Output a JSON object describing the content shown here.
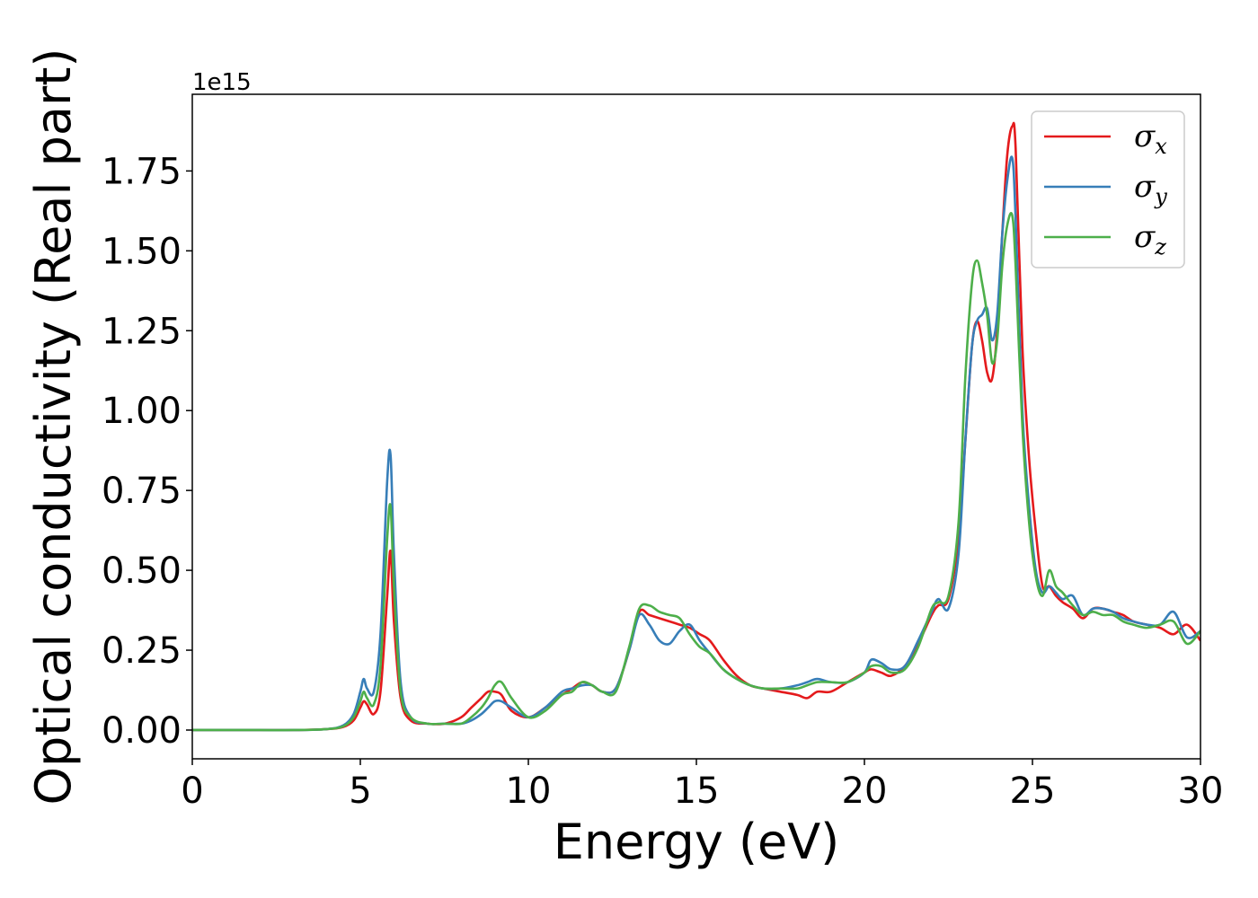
{
  "chart_data": {
    "type": "line",
    "xlabel": "Energy (eV)",
    "ylabel": "Optical conductivity (Real part)",
    "y_offset_label": "1e15",
    "xlim": [
      0,
      30
    ],
    "ylim": [
      -0.09,
      1.99
    ],
    "x_ticks": [
      0,
      5,
      10,
      15,
      20,
      25,
      30
    ],
    "x_tick_labels": [
      "0",
      "5",
      "10",
      "15",
      "20",
      "25",
      "30"
    ],
    "y_ticks": [
      0.0,
      0.25,
      0.5,
      0.75,
      1.0,
      1.25,
      1.5,
      1.75
    ],
    "y_tick_labels": [
      "0.00",
      "0.25",
      "0.50",
      "0.75",
      "1.00",
      "1.25",
      "1.50",
      "1.75"
    ],
    "grid": false,
    "legend_position": "top-right",
    "x": [
      0,
      1,
      2,
      3,
      4,
      4.5,
      4.8,
      5.0,
      5.1,
      5.2,
      5.4,
      5.6,
      5.8,
      5.9,
      6.0,
      6.2,
      6.5,
      7.0,
      7.5,
      8.0,
      8.3,
      8.6,
      8.8,
      9.0,
      9.2,
      9.5,
      10.0,
      10.5,
      11.0,
      11.3,
      11.6,
      11.9,
      12.2,
      12.6,
      13.0,
      13.3,
      13.6,
      13.9,
      14.2,
      14.5,
      14.8,
      15.1,
      15.4,
      15.8,
      16.2,
      16.6,
      17.0,
      17.5,
      18.0,
      18.3,
      18.6,
      19.0,
      19.5,
      20.0,
      20.2,
      20.5,
      20.8,
      21.2,
      21.6,
      22.0,
      22.2,
      22.5,
      22.8,
      23.0,
      23.2,
      23.35,
      23.5,
      23.65,
      23.8,
      23.95,
      24.1,
      24.25,
      24.4,
      24.5,
      24.7,
      24.9,
      25.1,
      25.3,
      25.5,
      25.7,
      25.9,
      26.2,
      26.5,
      26.8,
      27.1,
      27.4,
      27.7,
      28.0,
      28.4,
      28.8,
      29.2,
      29.6,
      30.0
    ],
    "series": [
      {
        "name": "σx",
        "symbol": "σ",
        "subscript": "x",
        "color": "#e41a1c",
        "values": [
          0,
          0,
          0,
          0,
          0.003,
          0.01,
          0.03,
          0.07,
          0.09,
          0.08,
          0.05,
          0.12,
          0.42,
          0.56,
          0.34,
          0.1,
          0.03,
          0.02,
          0.02,
          0.04,
          0.07,
          0.1,
          0.12,
          0.12,
          0.11,
          0.06,
          0.04,
          0.07,
          0.11,
          0.13,
          0.15,
          0.14,
          0.12,
          0.13,
          0.25,
          0.37,
          0.36,
          0.35,
          0.34,
          0.33,
          0.32,
          0.3,
          0.28,
          0.22,
          0.17,
          0.14,
          0.13,
          0.12,
          0.11,
          0.1,
          0.12,
          0.12,
          0.15,
          0.18,
          0.19,
          0.18,
          0.17,
          0.2,
          0.27,
          0.36,
          0.39,
          0.41,
          0.6,
          0.9,
          1.2,
          1.28,
          1.22,
          1.12,
          1.1,
          1.25,
          1.55,
          1.8,
          1.89,
          1.82,
          1.2,
          0.85,
          0.62,
          0.45,
          0.45,
          0.42,
          0.4,
          0.38,
          0.35,
          0.38,
          0.38,
          0.37,
          0.36,
          0.34,
          0.33,
          0.32,
          0.3,
          0.33,
          0.28
        ]
      },
      {
        "name": "σy",
        "symbol": "σ",
        "subscript": "y",
        "color": "#377eb8",
        "values": [
          0,
          0,
          0,
          0,
          0.003,
          0.015,
          0.05,
          0.12,
          0.16,
          0.13,
          0.12,
          0.3,
          0.78,
          0.86,
          0.55,
          0.15,
          0.04,
          0.02,
          0.02,
          0.02,
          0.03,
          0.05,
          0.07,
          0.09,
          0.09,
          0.07,
          0.04,
          0.07,
          0.12,
          0.13,
          0.14,
          0.14,
          0.12,
          0.13,
          0.25,
          0.36,
          0.33,
          0.28,
          0.27,
          0.31,
          0.33,
          0.28,
          0.24,
          0.19,
          0.16,
          0.14,
          0.13,
          0.13,
          0.14,
          0.15,
          0.16,
          0.15,
          0.15,
          0.18,
          0.22,
          0.21,
          0.19,
          0.2,
          0.28,
          0.37,
          0.41,
          0.38,
          0.55,
          0.9,
          1.2,
          1.28,
          1.3,
          1.32,
          1.22,
          1.3,
          1.55,
          1.72,
          1.79,
          1.6,
          1.0,
          0.7,
          0.5,
          0.43,
          0.45,
          0.43,
          0.41,
          0.42,
          0.36,
          0.38,
          0.38,
          0.37,
          0.35,
          0.34,
          0.33,
          0.33,
          0.37,
          0.29,
          0.31
        ]
      },
      {
        "name": "σz",
        "symbol": "σ",
        "subscript": "z",
        "color": "#4daf4a",
        "values": [
          0,
          0,
          0,
          0,
          0.003,
          0.012,
          0.04,
          0.09,
          0.12,
          0.1,
          0.08,
          0.2,
          0.6,
          0.7,
          0.45,
          0.12,
          0.04,
          0.02,
          0.02,
          0.02,
          0.04,
          0.07,
          0.1,
          0.14,
          0.15,
          0.1,
          0.04,
          0.06,
          0.11,
          0.12,
          0.15,
          0.14,
          0.12,
          0.12,
          0.26,
          0.38,
          0.39,
          0.37,
          0.36,
          0.35,
          0.3,
          0.26,
          0.24,
          0.19,
          0.16,
          0.14,
          0.13,
          0.13,
          0.13,
          0.14,
          0.15,
          0.15,
          0.15,
          0.18,
          0.2,
          0.2,
          0.18,
          0.19,
          0.26,
          0.38,
          0.4,
          0.42,
          0.65,
          1.1,
          1.4,
          1.47,
          1.4,
          1.3,
          1.15,
          1.22,
          1.45,
          1.58,
          1.61,
          1.45,
          0.95,
          0.65,
          0.48,
          0.42,
          0.5,
          0.45,
          0.43,
          0.39,
          0.36,
          0.37,
          0.36,
          0.36,
          0.34,
          0.33,
          0.32,
          0.33,
          0.34,
          0.27,
          0.31
        ]
      }
    ]
  }
}
